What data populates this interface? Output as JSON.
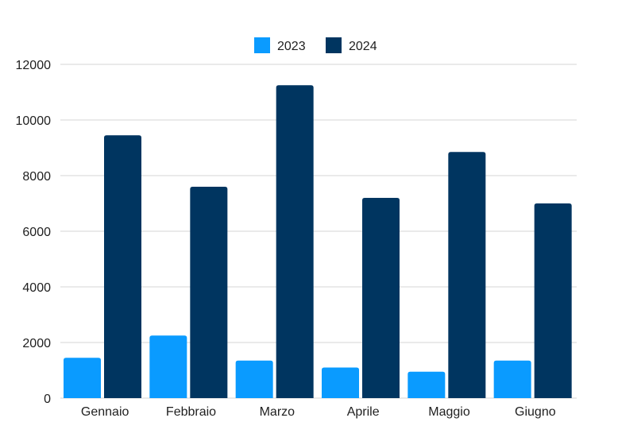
{
  "chart_data": {
    "type": "bar",
    "categories": [
      "Gennaio",
      "Febbraio",
      "Marzo",
      "Aprile",
      "Maggio",
      "Giugno"
    ],
    "series": [
      {
        "name": "2023",
        "color": "#0a9bff",
        "values": [
          1450,
          2250,
          1350,
          1100,
          950,
          1350
        ]
      },
      {
        "name": "2024",
        "color": "#003560",
        "values": [
          9450,
          7600,
          11250,
          7200,
          8850,
          7000
        ]
      }
    ],
    "ylim": [
      0,
      12000
    ],
    "yticks": [
      "0",
      "2000",
      "4000",
      "6000",
      "8000",
      "10000",
      "12000"
    ],
    "grid": true,
    "legend_position": "top-center"
  }
}
